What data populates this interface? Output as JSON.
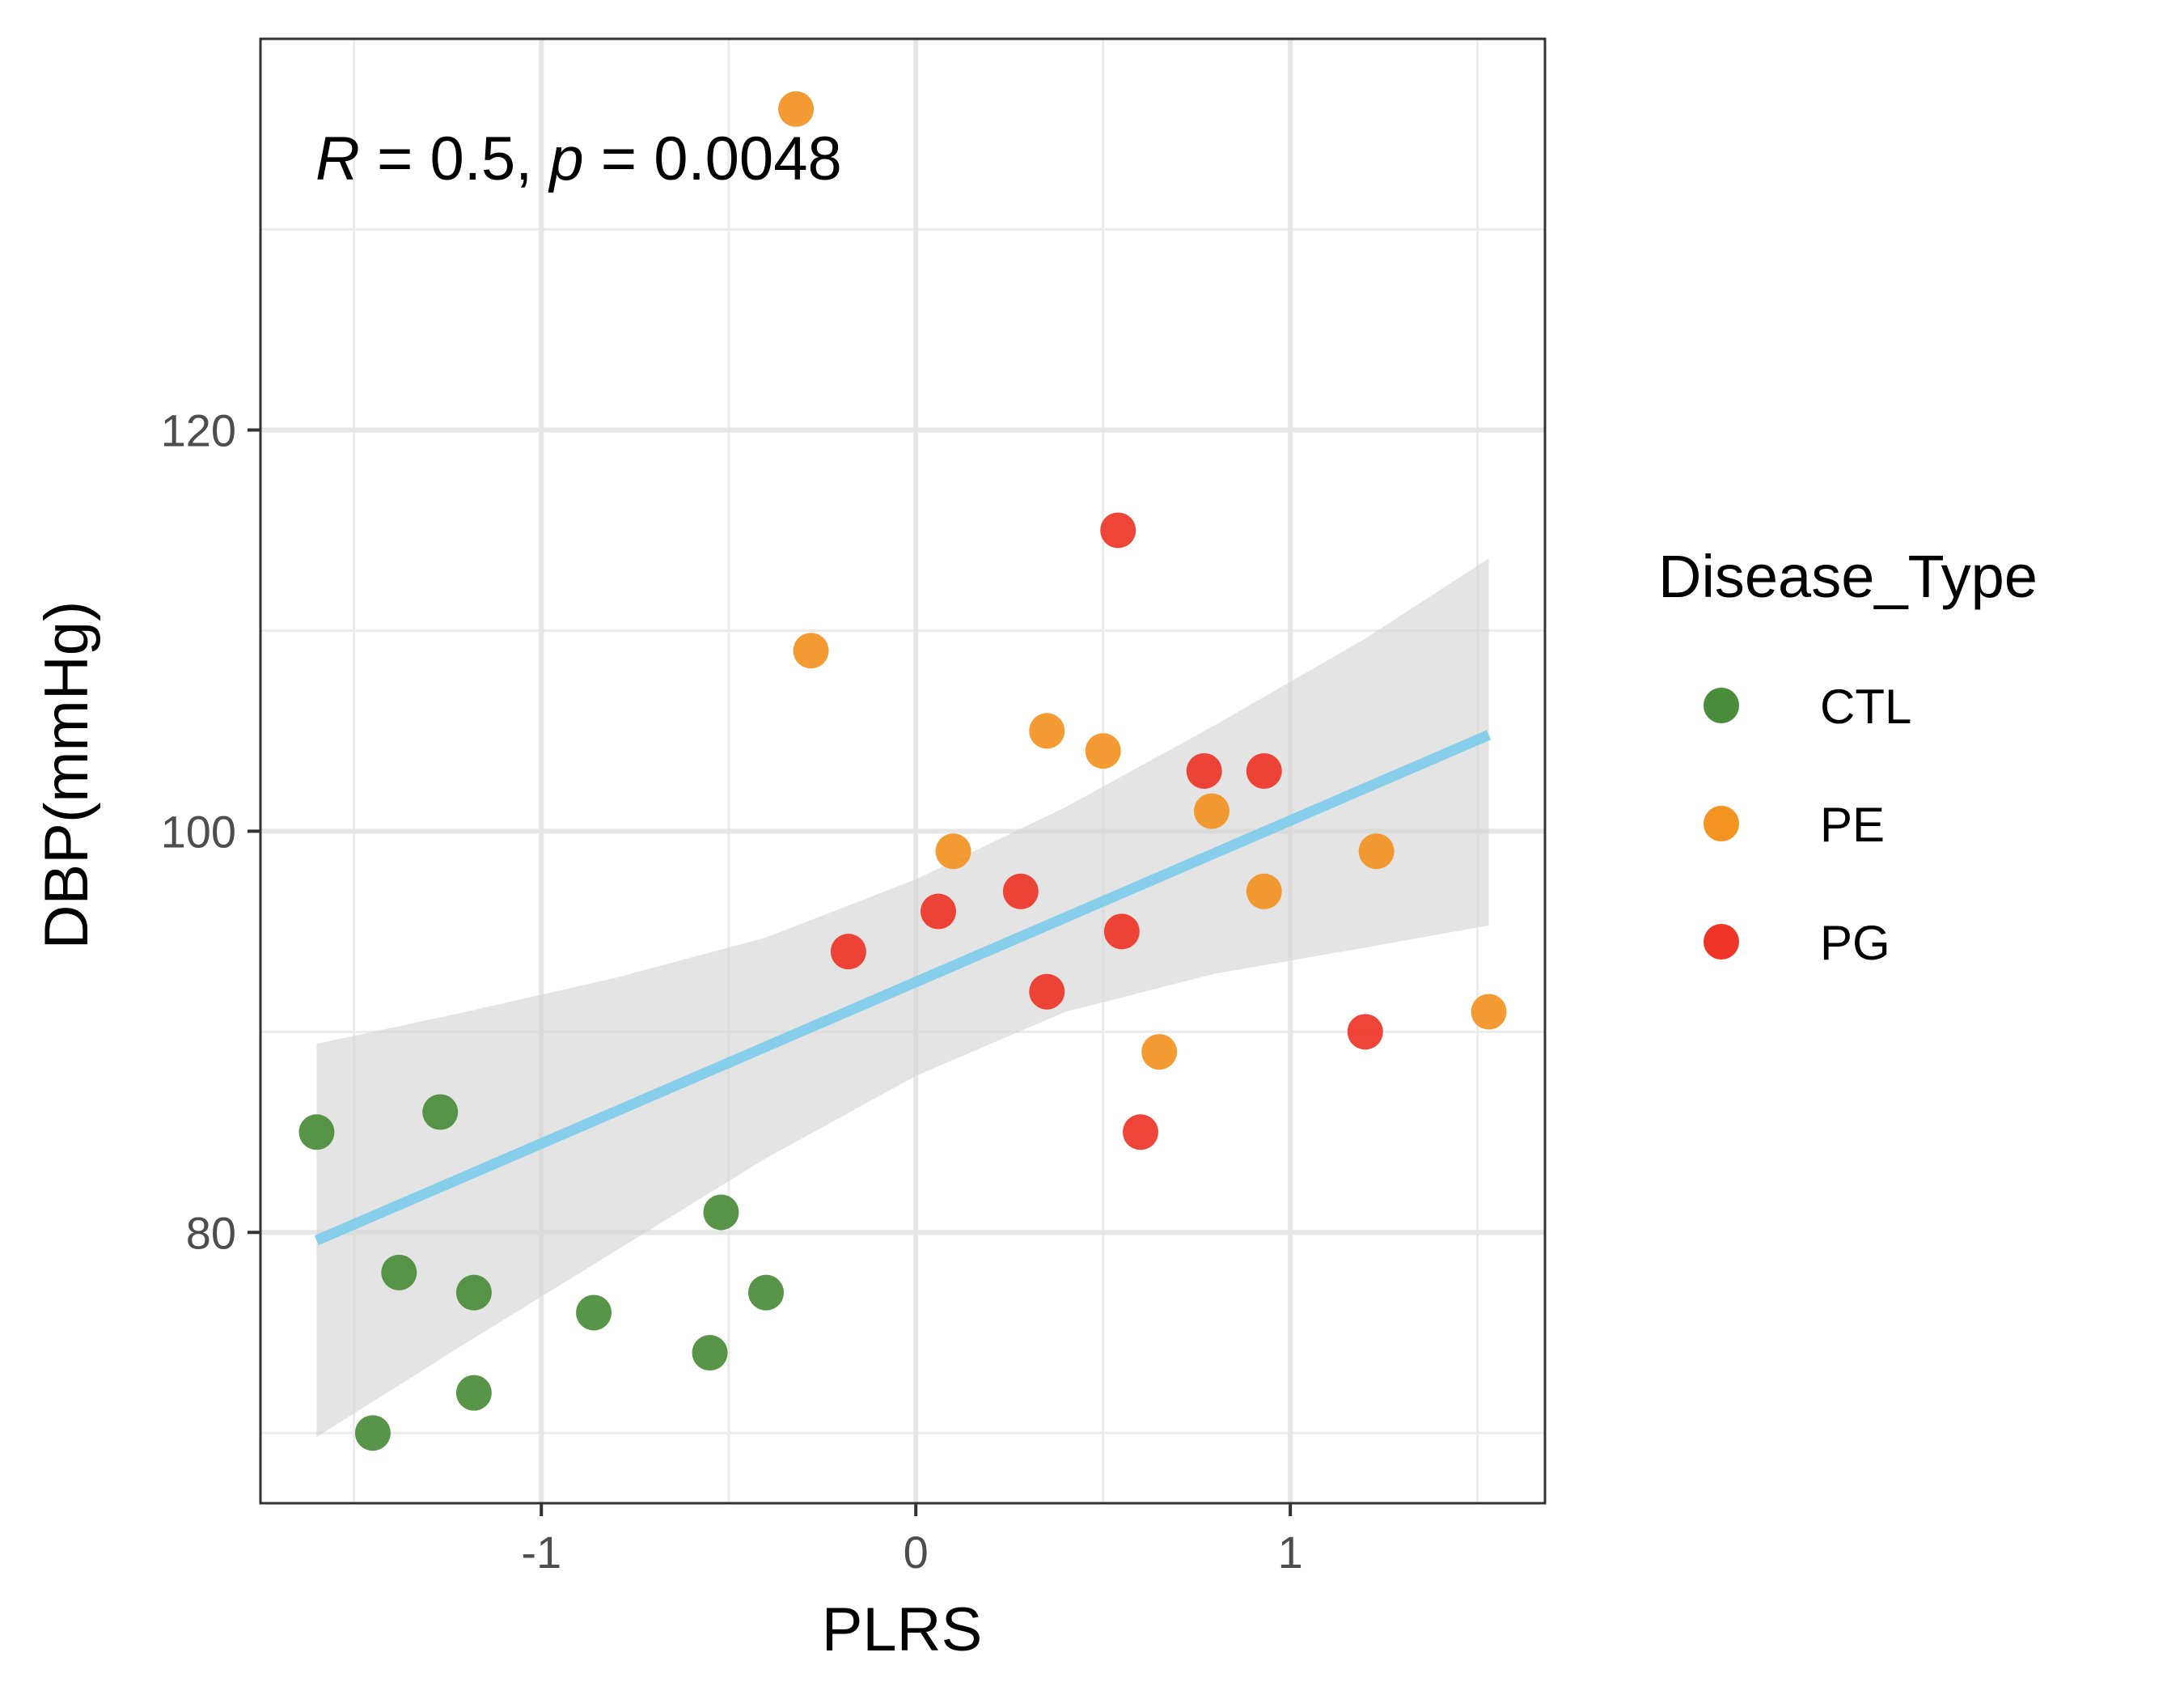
{
  "chart_data": {
    "type": "scatter",
    "xlabel": "PLRS",
    "ylabel": "DBP(mmHg)",
    "xlim": [
      -1.75,
      1.68
    ],
    "ylim": [
      66.5,
      139.5
    ],
    "x_ticks": [
      -1,
      0,
      1
    ],
    "x_tick_labels": [
      "-1",
      "0",
      "1"
    ],
    "y_ticks": [
      80,
      100,
      120
    ],
    "y_tick_labels": [
      "80",
      "100",
      "120"
    ],
    "x_minor_ticks": [
      -1.5,
      -0.5,
      0.5,
      1.5
    ],
    "y_minor_ticks": [
      70,
      90,
      110,
      130
    ],
    "grid": true,
    "legend": {
      "title": "Disease_Type",
      "placement": "right",
      "entries": [
        {
          "label": "CTL",
          "color": "#4a8c3a"
        },
        {
          "label": "PE",
          "color": "#f39322"
        },
        {
          "label": "PG",
          "color": "#ee3528"
        }
      ]
    },
    "annotation": {
      "r_label": "R",
      "r_eq": " = 0.5, ",
      "p_label": "p",
      "p_eq": " = 0.0048"
    },
    "fit_line": {
      "color": "#87ceeb",
      "x": [
        -1.6,
        1.53
      ],
      "y": [
        79.6,
        104.8
      ]
    },
    "confidence_band": {
      "color": "#d6d6d6",
      "x": [
        -1.6,
        -1.2,
        -0.8,
        -0.4,
        0.0,
        0.4,
        0.8,
        1.2,
        1.53
      ],
      "upper": [
        89.4,
        91.0,
        92.7,
        94.7,
        97.6,
        101.2,
        105.3,
        109.6,
        113.6
      ],
      "lower": [
        69.8,
        74.5,
        79.1,
        83.7,
        87.8,
        91.0,
        92.9,
        94.2,
        95.3
      ]
    },
    "series": [
      {
        "name": "CTL",
        "color": "#4a8c3a",
        "points": [
          {
            "x": -1.6,
            "y": 85
          },
          {
            "x": -1.27,
            "y": 86
          },
          {
            "x": -1.38,
            "y": 78
          },
          {
            "x": -1.18,
            "y": 77
          },
          {
            "x": -0.86,
            "y": 76
          },
          {
            "x": -0.52,
            "y": 81
          },
          {
            "x": -0.4,
            "y": 77
          },
          {
            "x": -0.55,
            "y": 74
          },
          {
            "x": -1.18,
            "y": 72
          },
          {
            "x": -1.45,
            "y": 70
          }
        ]
      },
      {
        "name": "PE",
        "color": "#f39322",
        "points": [
          {
            "x": -0.32,
            "y": 136
          },
          {
            "x": -0.28,
            "y": 109
          },
          {
            "x": 0.35,
            "y": 105
          },
          {
            "x": 0.5,
            "y": 104
          },
          {
            "x": 0.1,
            "y": 99
          },
          {
            "x": 0.79,
            "y": 101
          },
          {
            "x": 0.93,
            "y": 97
          },
          {
            "x": 1.23,
            "y": 99
          },
          {
            "x": 1.53,
            "y": 91
          },
          {
            "x": 0.65,
            "y": 89
          }
        ]
      },
      {
        "name": "PG",
        "color": "#ee3528",
        "points": [
          {
            "x": 0.54,
            "y": 115
          },
          {
            "x": 0.77,
            "y": 103
          },
          {
            "x": 0.93,
            "y": 103
          },
          {
            "x": 0.06,
            "y": 96
          },
          {
            "x": 0.28,
            "y": 97
          },
          {
            "x": -0.18,
            "y": 94
          },
          {
            "x": 0.55,
            "y": 95
          },
          {
            "x": 0.35,
            "y": 92
          },
          {
            "x": 1.2,
            "y": 90
          },
          {
            "x": 0.6,
            "y": 85
          }
        ]
      }
    ]
  }
}
